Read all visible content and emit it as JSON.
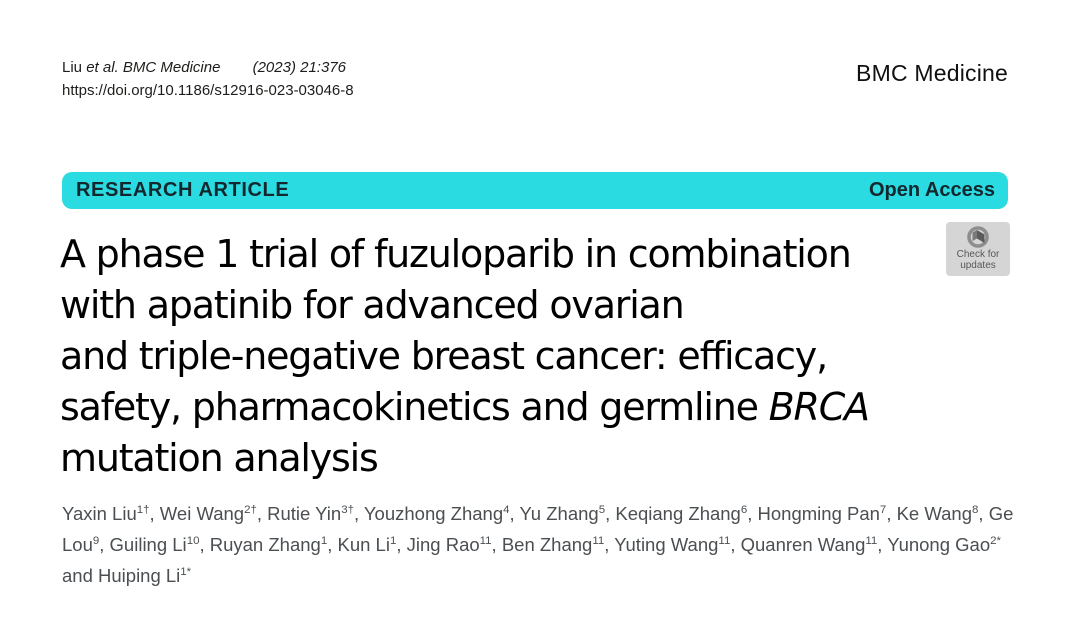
{
  "header": {
    "citation": {
      "lead_author": "Liu",
      "italic_part": "et al. BMC Medicine",
      "issue": "(2023) 21:376"
    },
    "doi": "https://doi.org/10.1186/s12916-023-03046-8",
    "journal": "BMC Medicine"
  },
  "banner": {
    "label": "RESEARCH ARTICLE",
    "open_access": "Open Access",
    "background": "#2bdbe2",
    "text_color": "#13282e"
  },
  "title": {
    "lines": [
      [
        {
          "text": "A phase 1 trial of fuzuloparib in combination"
        }
      ],
      [
        {
          "text": "with apatinib for advanced ovarian"
        }
      ],
      [
        {
          "text": "and triple-negative breast cancer: efficacy,"
        }
      ],
      [
        {
          "text": "safety, pharmacokinetics and germline "
        },
        {
          "text": "BRCA",
          "italic": true
        }
      ],
      [
        {
          "text": "mutation analysis"
        }
      ]
    ]
  },
  "check_updates": {
    "line1": "Check for",
    "line2": "updates"
  },
  "authors": {
    "and_word": "and",
    "list": [
      {
        "name": "Yaxin Liu",
        "sup": "1†"
      },
      {
        "name": "Wei Wang",
        "sup": "2†"
      },
      {
        "name": "Rutie Yin",
        "sup": "3†"
      },
      {
        "name": "Youzhong Zhang",
        "sup": "4"
      },
      {
        "name": "Yu Zhang",
        "sup": "5"
      },
      {
        "name": "Keqiang Zhang",
        "sup": "6"
      },
      {
        "name": "Hongming Pan",
        "sup": "7"
      },
      {
        "name": "Ke Wang",
        "sup": "8"
      },
      {
        "name": "Ge Lou",
        "sup": "9"
      },
      {
        "name": "Guiling Li",
        "sup": "10"
      },
      {
        "name": "Ruyan Zhang",
        "sup": "1"
      },
      {
        "name": "Kun Li",
        "sup": "1"
      },
      {
        "name": "Jing Rao",
        "sup": "11"
      },
      {
        "name": "Ben Zhang",
        "sup": "11"
      },
      {
        "name": "Yuting Wang",
        "sup": "11"
      },
      {
        "name": "Quanren Wang",
        "sup": "11"
      },
      {
        "name": "Yunong Gao",
        "sup": "2*"
      },
      {
        "name": "Huiping Li",
        "sup": "1*"
      }
    ]
  }
}
